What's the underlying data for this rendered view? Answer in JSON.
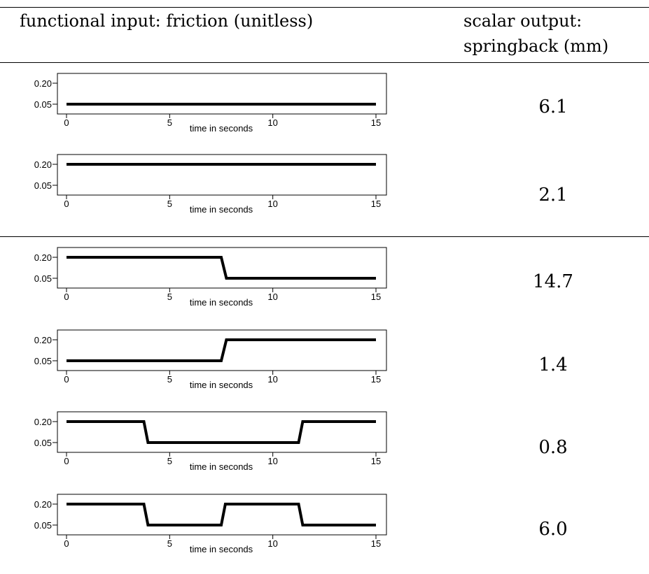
{
  "header": {
    "left": "functional input: friction (unitless)",
    "right_line1": "scalar output:",
    "right_line2": "springback (mm)"
  },
  "chart_data": [
    {
      "type": "line",
      "xlabel": "time in seconds",
      "xlim": [
        0,
        15
      ],
      "ylim": [
        0.05,
        0.2
      ],
      "xticks": [
        "0",
        "5",
        "10",
        "15"
      ],
      "yticks": [
        "0.20",
        "0.05"
      ],
      "x": [
        0,
        15
      ],
      "y": [
        0.05,
        0.05
      ],
      "output": "6.1"
    },
    {
      "type": "line",
      "xlabel": "time in seconds",
      "xlim": [
        0,
        15
      ],
      "ylim": [
        0.05,
        0.2
      ],
      "xticks": [
        "0",
        "5",
        "10",
        "15"
      ],
      "yticks": [
        "0.20",
        "0.05"
      ],
      "x": [
        0,
        15
      ],
      "y": [
        0.2,
        0.2
      ],
      "output": "2.1"
    },
    {
      "type": "line",
      "xlabel": "time in seconds",
      "xlim": [
        0,
        15
      ],
      "ylim": [
        0.05,
        0.2
      ],
      "xticks": [
        "0",
        "5",
        "10",
        "15"
      ],
      "yticks": [
        "0.20",
        "0.05"
      ],
      "x": [
        0,
        7.5,
        7.75,
        15
      ],
      "y": [
        0.2,
        0.2,
        0.05,
        0.05
      ],
      "output": "14.7"
    },
    {
      "type": "line",
      "xlabel": "time in seconds",
      "xlim": [
        0,
        15
      ],
      "ylim": [
        0.05,
        0.2
      ],
      "xticks": [
        "0",
        "5",
        "10",
        "15"
      ],
      "yticks": [
        "0.20",
        "0.05"
      ],
      "x": [
        0,
        7.5,
        7.75,
        15
      ],
      "y": [
        0.05,
        0.05,
        0.2,
        0.2
      ],
      "output": "1.4"
    },
    {
      "type": "line",
      "xlabel": "time in seconds",
      "xlim": [
        0,
        15
      ],
      "ylim": [
        0.05,
        0.2
      ],
      "xticks": [
        "0",
        "5",
        "10",
        "15"
      ],
      "yticks": [
        "0.20",
        "0.05"
      ],
      "x": [
        0,
        3.75,
        3.95,
        11.25,
        11.45,
        15
      ],
      "y": [
        0.2,
        0.2,
        0.05,
        0.05,
        0.2,
        0.2
      ],
      "output": "0.8"
    },
    {
      "type": "line",
      "xlabel": "time in seconds",
      "xlim": [
        0,
        15
      ],
      "ylim": [
        0.05,
        0.2
      ],
      "xticks": [
        "0",
        "5",
        "10",
        "15"
      ],
      "yticks": [
        "0.20",
        "0.05"
      ],
      "x": [
        0,
        3.75,
        3.95,
        7.5,
        7.7,
        11.25,
        11.45,
        15
      ],
      "y": [
        0.2,
        0.2,
        0.05,
        0.05,
        0.2,
        0.2,
        0.05,
        0.05
      ],
      "output": "6.0"
    }
  ]
}
